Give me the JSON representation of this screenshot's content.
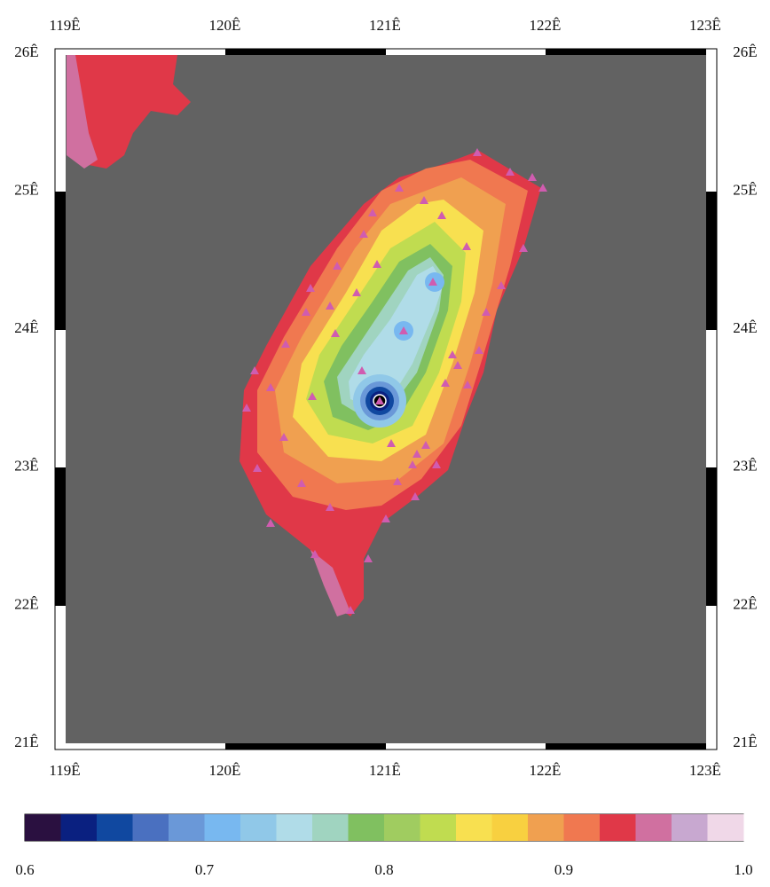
{
  "map": {
    "x_labels_top": [
      "119Ê",
      "120Ê",
      "121Ê",
      "122Ê",
      "123Ê"
    ],
    "x_labels_bottom": [
      "119Ê",
      "120Ê",
      "121Ê",
      "122Ê",
      "123Ê"
    ],
    "y_labels_left": [
      "26Ê",
      "25Ê",
      "24Ê",
      "23Ê",
      "22Ê",
      "21Ê"
    ],
    "y_labels_right": [
      "26Ê",
      "25Ê",
      "24Ê",
      "23Ê",
      "22Ê",
      "21Ê"
    ]
  },
  "colorbar": {
    "colors": [
      "#2a1040",
      "#0a2080",
      "#1048a0",
      "#4a70c0",
      "#6a98d8",
      "#78b8f0",
      "#90c8e8",
      "#b0dce8",
      "#a0d4c0",
      "#80c060",
      "#a0cc60",
      "#c0dc50",
      "#f8e050",
      "#f8d040",
      "#f0a050",
      "#f07850",
      "#e03848",
      "#d070a0",
      "#c8a8d0",
      "#f0d8e8"
    ],
    "ticks": [
      "0.6",
      "0.7",
      "0.8",
      "0.9",
      "1.0"
    ]
  }
}
